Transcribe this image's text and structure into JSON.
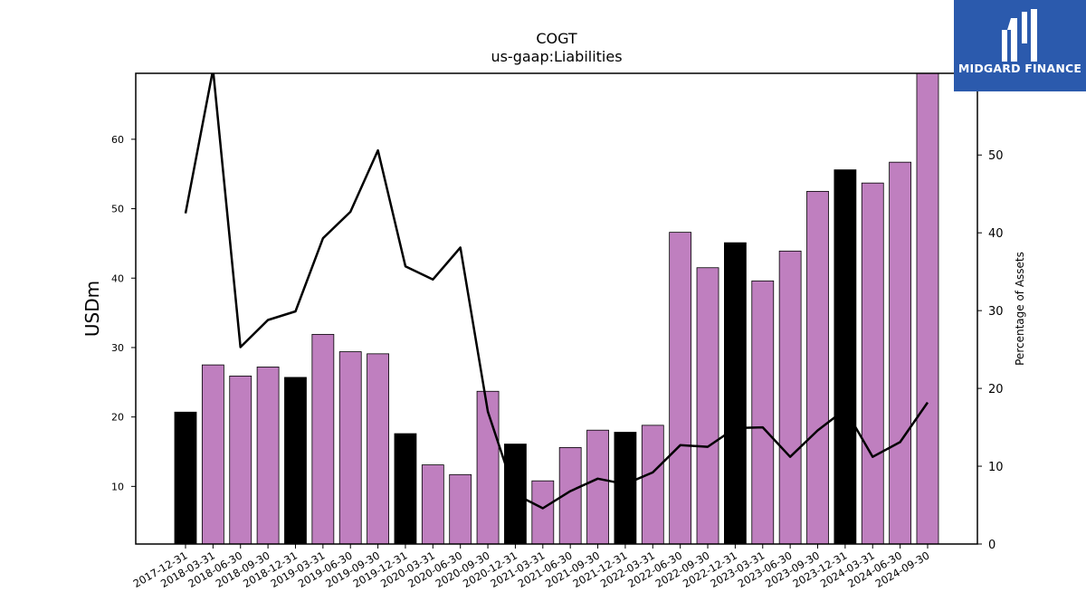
{
  "brand": {
    "name": "MIDGARD FINANCE",
    "bg_color": "#2b5aad"
  },
  "chart_data": {
    "type": "bar",
    "title": "COGT",
    "subtitle": "us-gaap:Liabilities",
    "ylabel": "USDm",
    "y2label": "Percentage of Assets",
    "ylim": [
      1.7,
      69.5
    ],
    "y2lim": [
      0,
      60.5
    ],
    "yticks": [
      10,
      20,
      30,
      40,
      50,
      60
    ],
    "y2ticks": [
      0,
      10,
      20,
      30,
      40,
      50
    ],
    "bar_color": "#bf7fbf",
    "year_end_color": "#000000",
    "line_color": "#000000",
    "categories": [
      "2017-12-31",
      "2018-03-31",
      "2018-06-30",
      "2018-09-30",
      "2018-12-31",
      "2019-03-31",
      "2019-06-30",
      "2019-09-30",
      "2019-12-31",
      "2020-03-31",
      "2020-06-30",
      "2020-09-30",
      "2020-12-31",
      "2021-03-31",
      "2021-06-30",
      "2021-09-30",
      "2021-12-31",
      "2022-03-31",
      "2022-06-30",
      "2022-09-30",
      "2022-12-31",
      "2023-03-31",
      "2023-06-30",
      "2023-09-30",
      "2023-12-31",
      "2024-03-31",
      "2024-06-30",
      "2024-09-30"
    ],
    "values": [
      20.7,
      27.5,
      25.9,
      27.2,
      25.7,
      31.9,
      29.4,
      29.1,
      17.6,
      13.1,
      11.7,
      23.7,
      16.1,
      10.8,
      15.6,
      18.1,
      17.8,
      18.8,
      46.6,
      41.5,
      45.1,
      39.6,
      43.9,
      52.5,
      55.6,
      53.7,
      56.7,
      69.5
    ],
    "year_end": [
      true,
      false,
      false,
      false,
      true,
      false,
      false,
      false,
      true,
      false,
      false,
      false,
      true,
      false,
      false,
      false,
      true,
      false,
      false,
      false,
      true,
      false,
      false,
      false,
      true,
      false,
      false,
      false
    ],
    "percent_of_assets": [
      42.5,
      61.0,
      25.3,
      28.8,
      29.9,
      39.3,
      42.7,
      50.6,
      35.7,
      34.0,
      38.1,
      17.0,
      6.4,
      4.6,
      6.8,
      8.4,
      7.7,
      9.2,
      12.7,
      12.5,
      14.9,
      15.0,
      11.2,
      14.6,
      17.3,
      11.2,
      13.1,
      18.2
    ]
  }
}
